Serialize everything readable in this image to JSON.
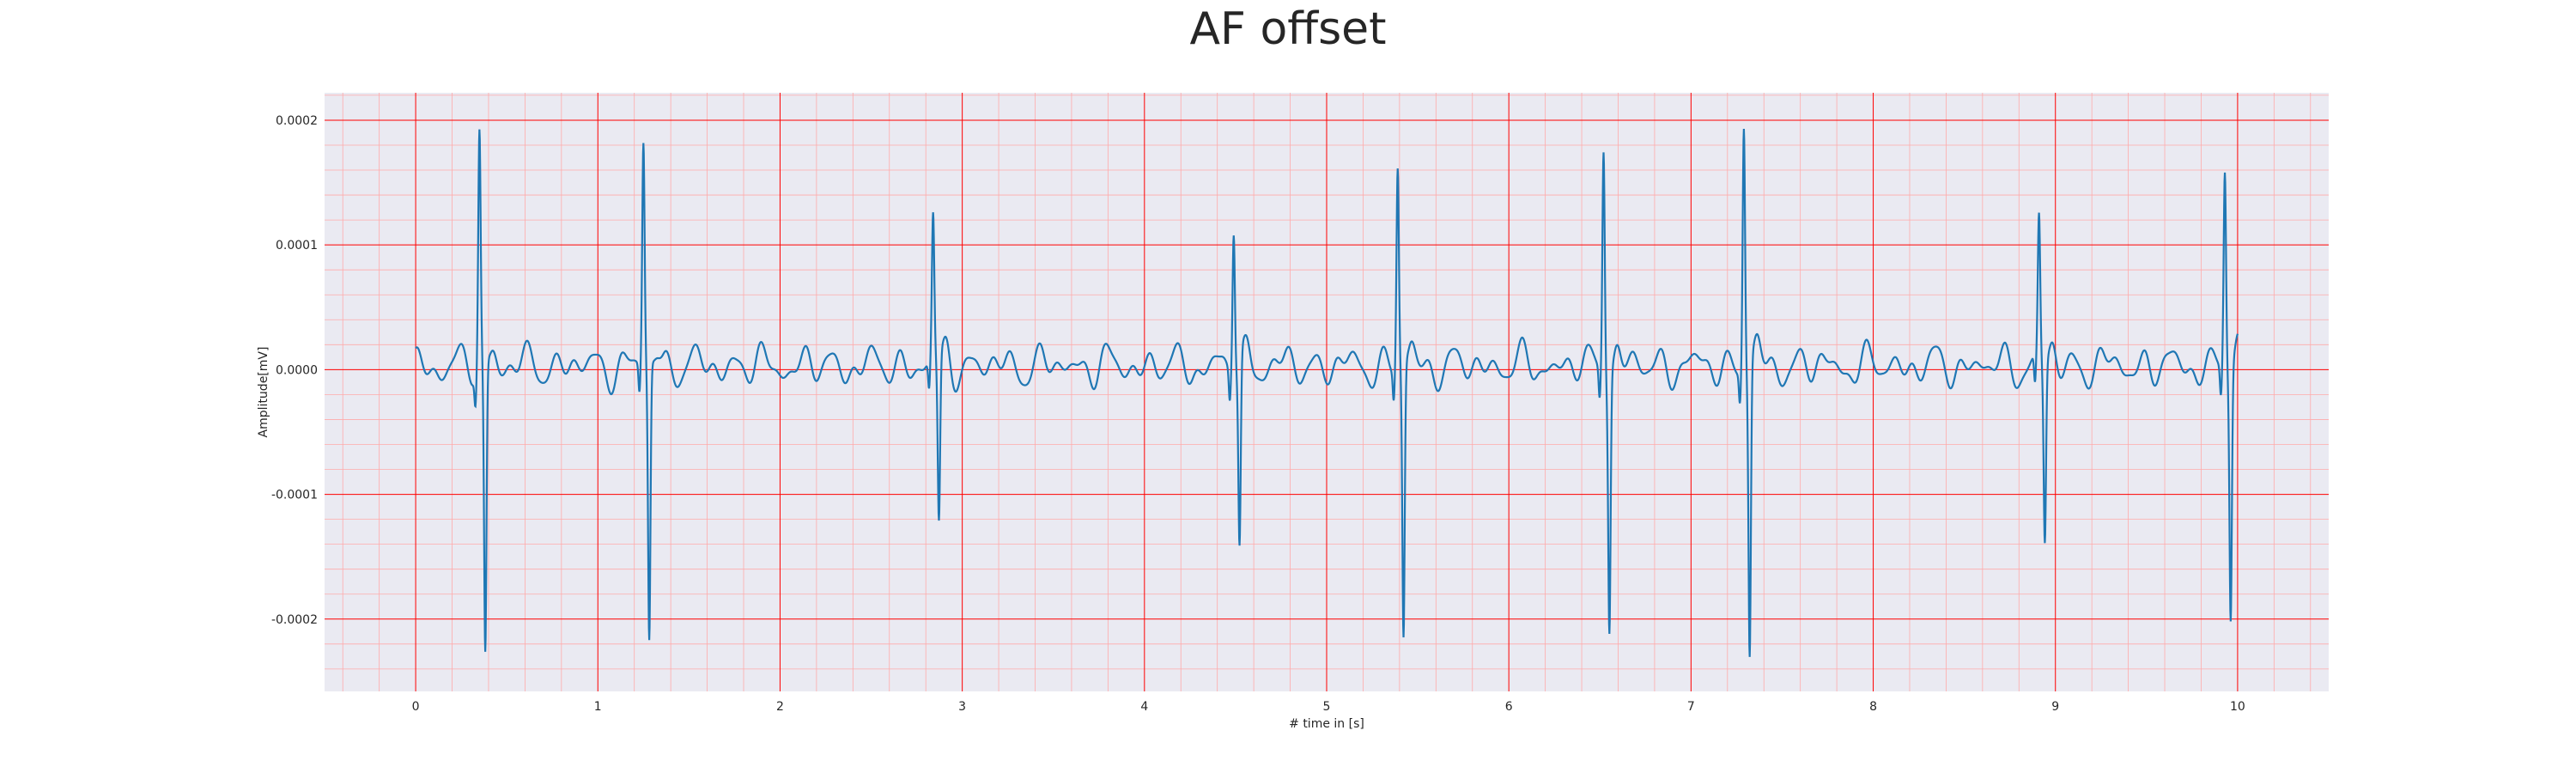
{
  "chart_data": {
    "type": "line",
    "title": "AF offset",
    "xlabel": "# time in [s]",
    "ylabel": "Amplitude[mV]",
    "xlim": [
      -0.5,
      10.5
    ],
    "ylim": [
      -0.000258,
      0.000222
    ],
    "x_ticks": [
      0,
      1,
      2,
      3,
      4,
      5,
      6,
      7,
      8,
      9,
      10
    ],
    "x_tick_labels": [
      "0",
      "1",
      "2",
      "3",
      "4",
      "5",
      "6",
      "7",
      "8",
      "9",
      "10"
    ],
    "y_ticks": [
      -0.0002,
      -0.0001,
      0,
      0.0001,
      0.0002
    ],
    "y_tick_labels": [
      "-0.0002",
      "-0.0001",
      "0.0000",
      "0.0001",
      "0.0002"
    ],
    "grid": {
      "major": true,
      "minor": true,
      "major_color": "#ff0000",
      "minor_color": "#ffaaaa"
    },
    "plot_background": "#eaeaf2",
    "duration_s": 10,
    "series": [
      {
        "color": "#1f77b4",
        "baseline": 3e-06,
        "beats": [
          {
            "t": 0.35,
            "peak": 0.000188,
            "trough": -0.000235
          },
          {
            "t": 1.25,
            "peak": 0.00018,
            "trough": -0.000222
          },
          {
            "t": 2.84,
            "peak": 0.000117,
            "trough": -0.000133
          },
          {
            "t": 4.49,
            "peak": 0.000117,
            "trough": -0.00015
          },
          {
            "t": 5.39,
            "peak": 0.000162,
            "trough": -0.000218
          },
          {
            "t": 6.52,
            "peak": 0.000185,
            "trough": -0.000202
          },
          {
            "t": 7.29,
            "peak": 0.0002,
            "trough": -0.000233
          },
          {
            "t": 8.91,
            "peak": 0.000117,
            "trough": -0.000143
          },
          {
            "t": 9.93,
            "peak": 0.000162,
            "trough": -0.0002
          }
        ]
      }
    ]
  }
}
